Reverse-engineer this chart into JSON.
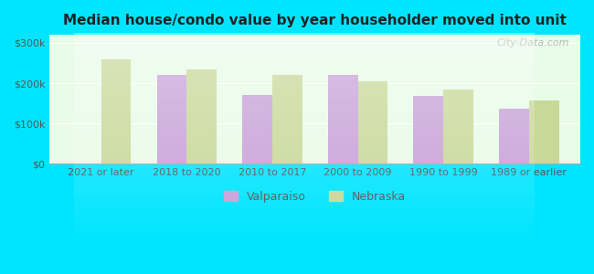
{
  "title": "Median house/condo value by year householder moved into unit",
  "categories": [
    "2021 or later",
    "2018 to 2020",
    "2010 to 2017",
    "2000 to 2009",
    "1990 to 1999",
    "1989 or earlier"
  ],
  "valparaiso": [
    null,
    220000,
    170000,
    220000,
    168000,
    138000
  ],
  "nebraska": [
    258000,
    235000,
    220000,
    205000,
    185000,
    158000
  ],
  "valparaiso_color": "#c8a0d8",
  "nebraska_color": "#c8d898",
  "bar_width": 0.35,
  "ylim": [
    0,
    320000
  ],
  "yticks": [
    0,
    100000,
    200000,
    300000
  ],
  "ytick_labels": [
    "$0",
    "$100k",
    "$200k",
    "$300k"
  ],
  "legend_valparaiso": "Valparaiso",
  "legend_nebraska": "Nebraska",
  "background_color": "#e8fce8",
  "outer_background": "#00e5ff",
  "watermark": "City-Data.com"
}
